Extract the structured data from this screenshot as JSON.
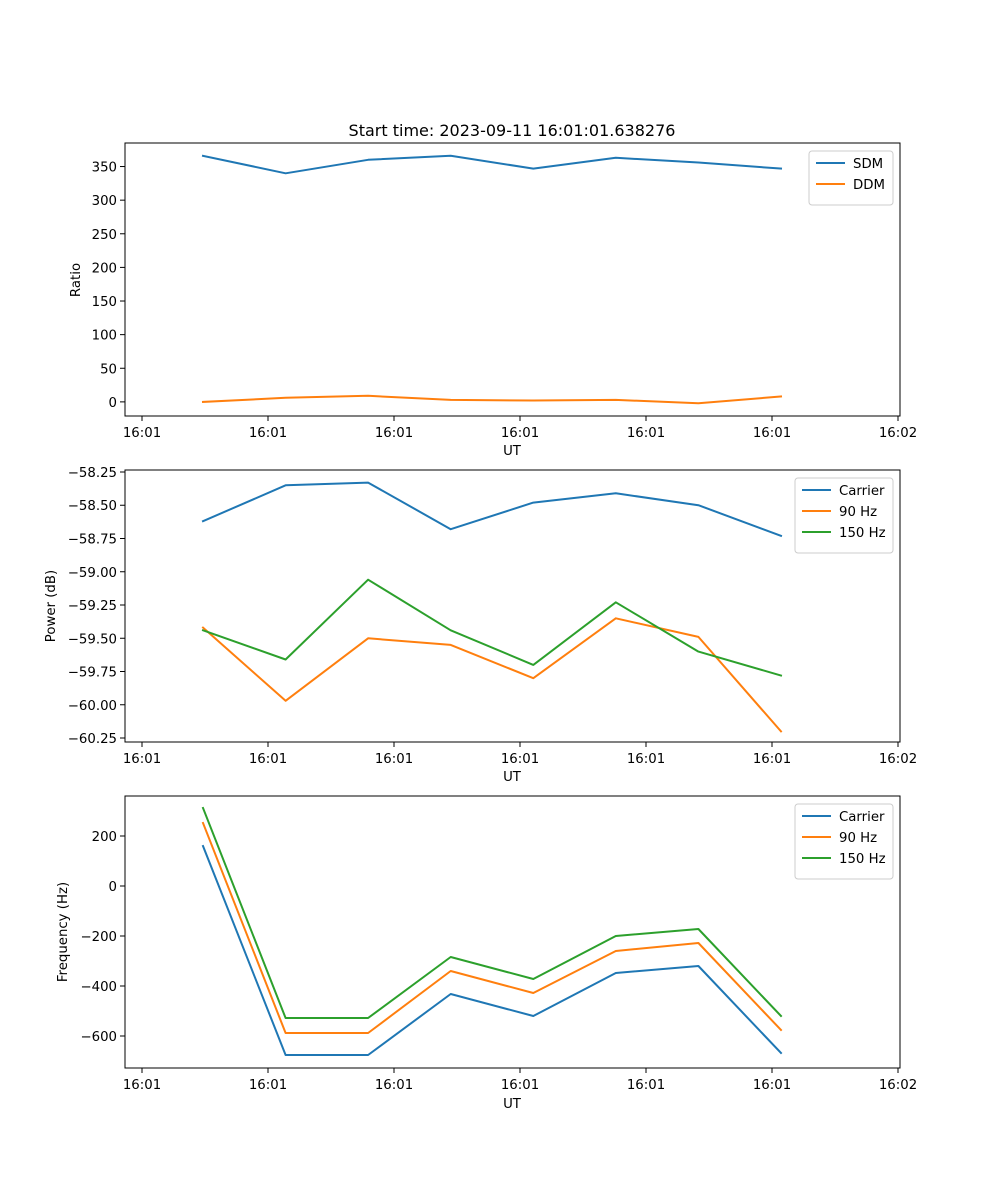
{
  "chart_data": [
    {
      "type": "line",
      "title": "Start time: 2023-09-11 16:01:01.638276",
      "xlabel": "UT",
      "ylabel": "Ratio",
      "xtick_labels": [
        "16:01",
        "16:01",
        "16:01",
        "16:01",
        "16:01",
        "16:01",
        "16:02"
      ],
      "ytick_values": [
        0,
        50,
        100,
        150,
        200,
        250,
        300,
        350
      ],
      "ytick_labels": [
        "0",
        "50",
        "100",
        "150",
        "200",
        "250",
        "300",
        "350"
      ],
      "ylim": [
        -21,
        385
      ],
      "legend_position": "top-right",
      "grid": false,
      "x_index": [
        1,
        2,
        3,
        4,
        5,
        6,
        7,
        8
      ],
      "series": [
        {
          "name": "SDM",
          "color": "#1f77b4",
          "values": [
            366,
            340,
            360,
            366,
            347,
            363,
            356,
            347
          ]
        },
        {
          "name": "DDM",
          "color": "#ff7f0e",
          "values": [
            0,
            6,
            9,
            3,
            2,
            3,
            -2,
            8
          ]
        }
      ]
    },
    {
      "type": "line",
      "title": "",
      "xlabel": "UT",
      "ylabel": "Power (dB)",
      "xtick_labels": [
        "16:01",
        "16:01",
        "16:01",
        "16:01",
        "16:01",
        "16:01",
        "16:02"
      ],
      "ytick_values": [
        -58.25,
        -58.5,
        -58.75,
        -59.0,
        -59.25,
        -59.5,
        -59.75,
        -60.0,
        -60.25
      ],
      "ytick_labels": [
        "−58.25",
        "−58.50",
        "−58.75",
        "−59.00",
        "−59.25",
        "−59.50",
        "−59.75",
        "−60.00",
        "−60.25"
      ],
      "ylim": [
        -60.28,
        -58.235
      ],
      "legend_position": "top-right",
      "grid": false,
      "x_index": [
        1,
        2,
        3,
        4,
        5,
        6,
        7,
        8
      ],
      "series": [
        {
          "name": "Carrier",
          "color": "#1f77b4",
          "values": [
            -58.62,
            -58.35,
            -58.33,
            -58.68,
            -58.48,
            -58.41,
            -58.5,
            -58.73
          ]
        },
        {
          "name": "90 Hz",
          "color": "#ff7f0e",
          "values": [
            -59.42,
            -59.97,
            -59.5,
            -59.55,
            -59.8,
            -59.35,
            -59.49,
            -60.2
          ]
        },
        {
          "name": "150 Hz",
          "color": "#2ca02c",
          "values": [
            -59.44,
            -59.66,
            -59.06,
            -59.44,
            -59.7,
            -59.23,
            -59.6,
            -59.78
          ]
        }
      ]
    },
    {
      "type": "line",
      "title": "",
      "xlabel": "UT",
      "ylabel": "Frequency (Hz)",
      "xtick_labels": [
        "16:01",
        "16:01",
        "16:01",
        "16:01",
        "16:01",
        "16:01",
        "16:02"
      ],
      "ytick_values": [
        200,
        0,
        -200,
        -400,
        -600
      ],
      "ytick_labels": [
        "200",
        "0",
        "−200",
        "−400",
        "−600"
      ],
      "ylim": [
        -728,
        360
      ],
      "legend_position": "top-right",
      "grid": false,
      "x_index": [
        1,
        2,
        3,
        4,
        5,
        6,
        7,
        8
      ],
      "series": [
        {
          "name": "Carrier",
          "color": "#1f77b4",
          "values": [
            160,
            -676,
            -676,
            -432,
            -520,
            -348,
            -320,
            -668
          ]
        },
        {
          "name": "90 Hz",
          "color": "#ff7f0e",
          "values": [
            252,
            -588,
            -588,
            -340,
            -428,
            -260,
            -228,
            -576
          ]
        },
        {
          "name": "150 Hz",
          "color": "#2ca02c",
          "values": [
            312,
            -528,
            -528,
            -284,
            -372,
            -200,
            -172,
            -520
          ]
        }
      ]
    }
  ]
}
